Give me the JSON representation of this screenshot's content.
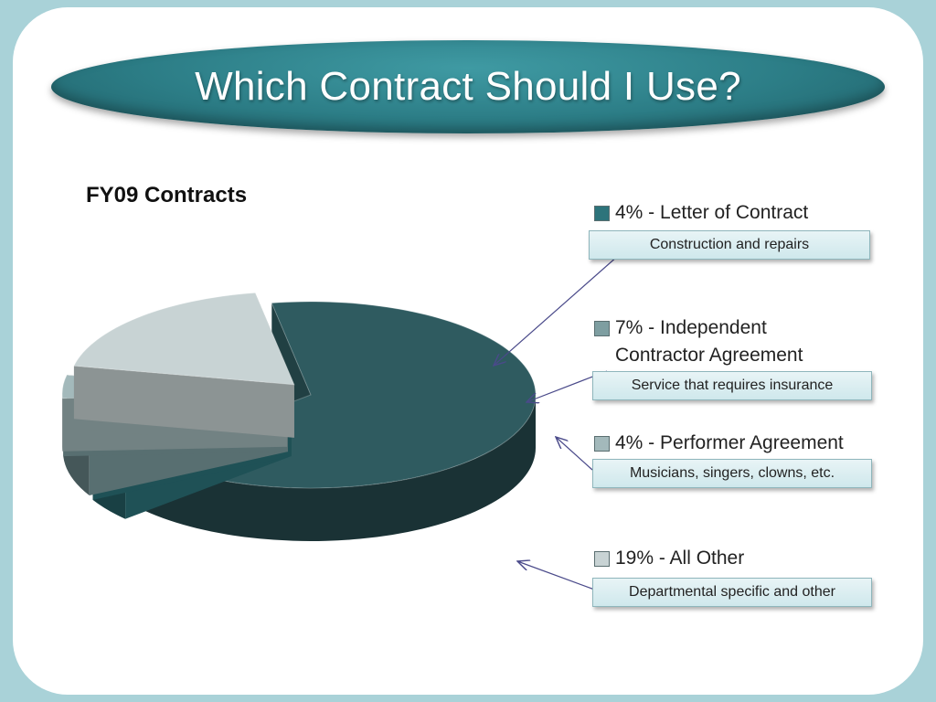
{
  "slide": {
    "title": "Which Contract Should I Use?"
  },
  "chart_data": {
    "type": "pie",
    "title": "FY09 Contracts",
    "categories": [
      "Letter of Contract",
      "Independent Contractor Agreement",
      "Performer Agreement",
      "All Other"
    ],
    "values": [
      4,
      7,
      4,
      19
    ],
    "legend": [
      {
        "label": "4% - Letter of Contract",
        "note": "Construction and repairs",
        "color": "#2d747b"
      },
      {
        "label": "7% - Independent Contractor Agreement",
        "note": "Service that requires insurance",
        "color": "#7e9ea1"
      },
      {
        "label": "4% - Performer Agreement",
        "note": "Musicians, singers, clowns, etc.",
        "color": "#a3b9bb"
      },
      {
        "label": "19% - All Other",
        "note": "Departmental specific and other",
        "color": "#c8d3d4"
      }
    ],
    "unlabeled_share_color": "#2f5b60",
    "legend_position": "right"
  }
}
